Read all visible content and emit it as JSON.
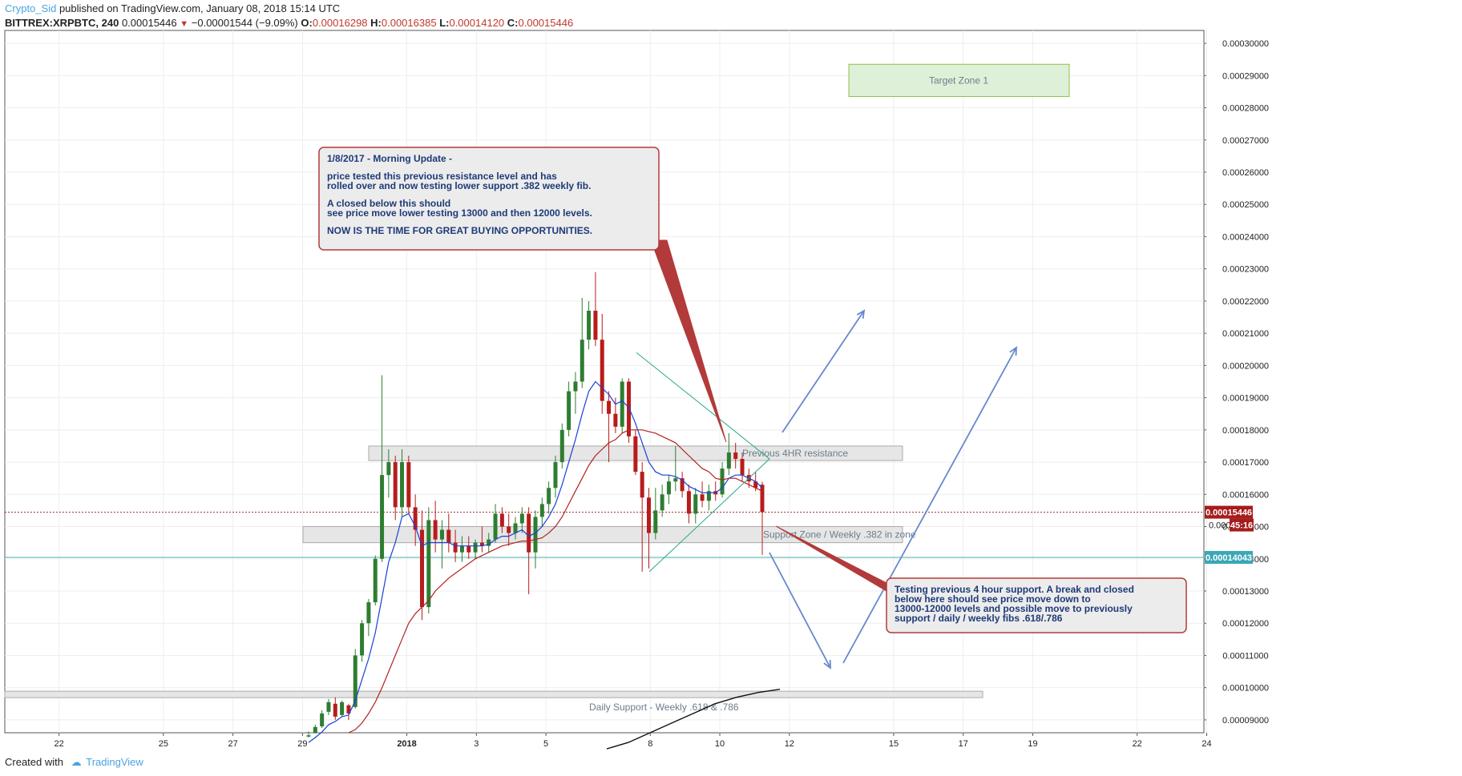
{
  "header": {
    "author": "Crypto_Sid",
    "published_text": "published on TradingView.com, January 08, 2018 15:14 UTC",
    "symbol": "BITTREX:XRPBTC, 240",
    "last": "0.00015446",
    "change": "−0.00001544 (−9.09%)",
    "open_label": "O:",
    "open": "0.00016298",
    "high_label": "H:",
    "high": "0.00016385",
    "low_label": "L:",
    "low": "0.00014120",
    "close_label": "C:",
    "close": "0.00015446"
  },
  "footer": {
    "created_with": "Created with",
    "brand": "TradingView"
  },
  "colors": {
    "up": "#2e7d32",
    "down": "#b71c1c",
    "ema_fast": "#1a3fd8",
    "ema_slow": "#b22222",
    "price_line": "#a52a2a",
    "support_line": "#4ab3b3",
    "grid": "#eeeeee",
    "annotation_border": "#b33a3a",
    "annotation_text": "#1e3a78",
    "arrow": "#6688cc",
    "target_fill": "#dff0d8",
    "target_border": "#8bc34a",
    "zone_fill": "#e6e6e6",
    "triangle": "#2aa88a"
  },
  "chart_data": {
    "type": "candlestick",
    "symbol": "BITTREX:XRPBTC",
    "interval": "240",
    "ylim": [
      8.6e-05,
      0.000304
    ],
    "y_ticks": [
      "0.00009000",
      "0.00010000",
      "0.00011000",
      "0.00012000",
      "0.00013000",
      "0.00014000",
      "0.00015000",
      "0.00016000",
      "0.00017000",
      "0.00018000",
      "0.00019000",
      "0.00020000",
      "0.00021000",
      "0.00022000",
      "0.00023000",
      "0.00024000",
      "0.00025000",
      "0.00026000",
      "0.00027000",
      "0.00028000",
      "0.00029000",
      "0.00030000"
    ],
    "x_ticks": [
      "22",
      "25",
      "27",
      "29",
      "2018",
      "3",
      "5",
      "8",
      "10",
      "12",
      "15",
      "17",
      "19",
      "22",
      "24"
    ],
    "last_price_label": "0.00015446",
    "countdown_label": "45:16",
    "hidden_label": "0.000",
    "support_price_label": "0.00014043",
    "candles": [
      {
        "o": 8.48e-05,
        "h": 8.64e-05,
        "l": 8.46e-05,
        "c": 8.52e-05
      },
      {
        "o": 8.6e-05,
        "h": 8.85e-05,
        "l": 8.58e-05,
        "c": 8.78e-05
      },
      {
        "o": 8.8e-05,
        "h": 9.3e-05,
        "l": 8.75e-05,
        "c": 9.2e-05
      },
      {
        "o": 9.25e-05,
        "h": 9.65e-05,
        "l": 9.15e-05,
        "c": 9.55e-05
      },
      {
        "o": 9.5e-05,
        "h": 9.7e-05,
        "l": 9e-05,
        "c": 9.1e-05
      },
      {
        "o": 9.15e-05,
        "h": 9.6e-05,
        "l": 9.1e-05,
        "c": 9.55e-05
      },
      {
        "o": 9.45e-05,
        "h": 9.5e-05,
        "l": 9e-05,
        "c": 9.2e-05
      },
      {
        "o": 9.4e-05,
        "h": 0.000112,
        "l": 9.35e-05,
        "c": 0.00011
      },
      {
        "o": 0.00011,
        "h": 0.000121,
        "l": 0.000108,
        "c": 0.00012
      },
      {
        "o": 0.00012,
        "h": 0.0001275,
        "l": 0.000116,
        "c": 0.0001265
      },
      {
        "o": 0.0001265,
        "h": 0.000141,
        "l": 0.0001255,
        "c": 0.00014
      },
      {
        "o": 0.00014,
        "h": 0.000197,
        "l": 0.000139,
        "c": 0.000166
      },
      {
        "o": 0.000166,
        "h": 0.000174,
        "l": 0.000159,
        "c": 0.00017
      },
      {
        "o": 0.00017,
        "h": 0.000172,
        "l": 0.000152,
        "c": 0.000156
      },
      {
        "o": 0.000156,
        "h": 0.000174,
        "l": 0.000153,
        "c": 0.00017
      },
      {
        "o": 0.00017,
        "h": 0.000172,
        "l": 0.000154,
        "c": 0.000156
      },
      {
        "o": 0.000156,
        "h": 0.00016,
        "l": 0.000144,
        "c": 0.000149
      },
      {
        "o": 0.000149,
        "h": 0.000155,
        "l": 0.000121,
        "c": 0.000125
      },
      {
        "o": 0.000125,
        "h": 0.000156,
        "l": 0.000123,
        "c": 0.000152
      },
      {
        "o": 0.000152,
        "h": 0.000158,
        "l": 0.000142,
        "c": 0.000146
      },
      {
        "o": 0.000146,
        "h": 0.000152,
        "l": 0.000137,
        "c": 0.000149
      },
      {
        "o": 0.000149,
        "h": 0.000154,
        "l": 0.000142,
        "c": 0.000145
      },
      {
        "o": 0.000145,
        "h": 0.000149,
        "l": 0.000139,
        "c": 0.000142
      },
      {
        "o": 0.000142,
        "h": 0.000147,
        "l": 0.000139,
        "c": 0.000144
      },
      {
        "o": 0.000144,
        "h": 0.000147,
        "l": 0.00014,
        "c": 0.000142
      },
      {
        "o": 0.000142,
        "h": 0.000146,
        "l": 0.00014,
        "c": 0.000145
      },
      {
        "o": 0.000145,
        "h": 0.00015,
        "l": 0.000142,
        "c": 0.000144
      },
      {
        "o": 0.000144,
        "h": 0.000148,
        "l": 0.000142,
        "c": 0.000146
      },
      {
        "o": 0.000146,
        "h": 0.000157,
        "l": 0.000145,
        "c": 0.000154
      },
      {
        "o": 0.000154,
        "h": 0.000156,
        "l": 0.000148,
        "c": 0.00015
      },
      {
        "o": 0.00015,
        "h": 0.000154,
        "l": 0.000144,
        "c": 0.000148
      },
      {
        "o": 0.000148,
        "h": 0.000153,
        "l": 0.000146,
        "c": 0.000151
      },
      {
        "o": 0.000151,
        "h": 0.000156,
        "l": 0.000148,
        "c": 0.000154
      },
      {
        "o": 0.000154,
        "h": 0.000156,
        "l": 0.000129,
        "c": 0.000142
      },
      {
        "o": 0.000142,
        "h": 0.000155,
        "l": 0.000137,
        "c": 0.000153
      },
      {
        "o": 0.000153,
        "h": 0.000159,
        "l": 0.00015,
        "c": 0.000157
      },
      {
        "o": 0.000157,
        "h": 0.000164,
        "l": 0.000154,
        "c": 0.000162
      },
      {
        "o": 0.000162,
        "h": 0.000172,
        "l": 0.000159,
        "c": 0.00017
      },
      {
        "o": 0.00017,
        "h": 0.000182,
        "l": 0.000168,
        "c": 0.00018
      },
      {
        "o": 0.00018,
        "h": 0.000195,
        "l": 0.000178,
        "c": 0.000192
      },
      {
        "o": 0.000192,
        "h": 0.000198,
        "l": 0.000185,
        "c": 0.000195
      },
      {
        "o": 0.000195,
        "h": 0.000221,
        "l": 0.000193,
        "c": 0.000208
      },
      {
        "o": 0.000208,
        "h": 0.00022,
        "l": 0.000205,
        "c": 0.000217
      },
      {
        "o": 0.000217,
        "h": 0.000229,
        "l": 0.000206,
        "c": 0.000208
      },
      {
        "o": 0.000208,
        "h": 0.000216,
        "l": 0.000185,
        "c": 0.000189
      },
      {
        "o": 0.000189,
        "h": 0.000192,
        "l": 0.00017,
        "c": 0.000185
      },
      {
        "o": 0.000185,
        "h": 0.00019,
        "l": 0.000179,
        "c": 0.000181
      },
      {
        "o": 0.000181,
        "h": 0.000196,
        "l": 0.000179,
        "c": 0.000195
      },
      {
        "o": 0.000195,
        "h": 0.000196,
        "l": 0.000176,
        "c": 0.000178
      },
      {
        "o": 0.000178,
        "h": 0.00018,
        "l": 0.000166,
        "c": 0.000167
      },
      {
        "o": 0.000167,
        "h": 0.00017,
        "l": 0.000136,
        "c": 0.000159
      },
      {
        "o": 0.000159,
        "h": 0.000162,
        "l": 0.000137,
        "c": 0.000148
      },
      {
        "o": 0.000148,
        "h": 0.000162,
        "l": 0.000146,
        "c": 0.000155
      },
      {
        "o": 0.000155,
        "h": 0.000163,
        "l": 0.000153,
        "c": 0.00016
      },
      {
        "o": 0.00016,
        "h": 0.000166,
        "l": 0.000157,
        "c": 0.000164
      },
      {
        "o": 0.000164,
        "h": 0.000175,
        "l": 0.000161,
        "c": 0.000165
      },
      {
        "o": 0.000165,
        "h": 0.000167,
        "l": 0.000159,
        "c": 0.000161
      },
      {
        "o": 0.000161,
        "h": 0.000163,
        "l": 0.000151,
        "c": 0.000154
      },
      {
        "o": 0.000154,
        "h": 0.000162,
        "l": 0.000151,
        "c": 0.00016
      },
      {
        "o": 0.00016,
        "h": 0.000164,
        "l": 0.000156,
        "c": 0.000158
      },
      {
        "o": 0.000158,
        "h": 0.000163,
        "l": 0.000155,
        "c": 0.000161
      },
      {
        "o": 0.000161,
        "h": 0.000164,
        "l": 0.000158,
        "c": 0.00016
      },
      {
        "o": 0.00016,
        "h": 0.00017,
        "l": 0.000159,
        "c": 0.000168
      },
      {
        "o": 0.000168,
        "h": 0.000179,
        "l": 0.000166,
        "c": 0.000173
      },
      {
        "o": 0.000173,
        "h": 0.000176,
        "l": 0.000168,
        "c": 0.000171
      },
      {
        "o": 0.000171,
        "h": 0.000173,
        "l": 0.000164,
        "c": 0.000166
      },
      {
        "o": 0.000166,
        "h": 0.000168,
        "l": 0.000162,
        "c": 0.000164
      },
      {
        "o": 0.000164,
        "h": 0.000167,
        "l": 0.000161,
        "c": 0.000162
      },
      {
        "o": 0.000163,
        "h": 0.0001639,
        "l": 0.0001412,
        "c": 0.0001545
      }
    ],
    "ema_fast": [
      8.3e-05,
      8.45e-05,
      8.62e-05,
      8.85e-05,
      8.95e-05,
      9.1e-05,
      9.15e-05,
      9.6e-05,
      0.0001025,
      0.000109,
      0.000117,
      0.000128,
      0.000139,
      0.000145,
      0.000153,
      0.000154,
      0.00015,
      0.000144,
      0.000145,
      0.000145,
      0.000145,
      0.000145,
      0.000144,
      0.000144,
      0.000144,
      0.000144,
      0.000144,
      0.0001445,
      0.000146,
      0.000147,
      0.000147,
      0.000148,
      0.000149,
      0.000147,
      0.000148,
      0.00015,
      0.000153,
      0.000157,
      0.000163,
      0.00017,
      0.000177,
      0.000185,
      0.000192,
      0.000195,
      0.000193,
      0.000191,
      0.000188,
      0.000189,
      0.000187,
      0.000182,
      0.000176,
      0.00017,
      0.000167,
      0.000166,
      0.000166,
      0.0001655,
      0.0001645,
      0.0001625,
      0.0001615,
      0.0001605,
      0.0001605,
      0.0001605,
      0.000162,
      0.000165,
      0.000166,
      0.000166,
      0.000165,
      0.000164,
      0.000162
    ],
    "ema_slow": [
      null,
      null,
      null,
      null,
      null,
      null,
      8.6e-05,
      8.7e-05,
      8.9e-05,
      9.2e-05,
      9.55e-05,
      0.0001,
      0.000105,
      0.00011,
      0.000115,
      0.00012,
      0.000123,
      0.000125,
      0.000127,
      0.00013,
      0.000132,
      0.000134,
      0.0001355,
      0.000137,
      0.0001385,
      0.00014,
      0.000141,
      0.000142,
      0.000143,
      0.000144,
      0.0001445,
      0.000145,
      0.0001455,
      0.0001455,
      0.000146,
      0.0001465,
      0.000148,
      0.00015,
      0.000153,
      0.000157,
      0.000161,
      0.000165,
      0.000169,
      0.000172,
      0.000174,
      0.000176,
      0.000177,
      0.000179,
      0.00018,
      0.00018,
      0.00018,
      0.0001795,
      0.000179,
      0.000178,
      0.000177,
      0.000176,
      0.000174,
      0.000172,
      0.00017,
      0.000168,
      0.000167,
      0.000165,
      0.0001645,
      0.000165,
      0.000165,
      0.000164,
      0.000163,
      0.000162,
      0.000161
    ],
    "ema_long": [
      8.1e-05,
      8.3e-05,
      8.6e-05,
      8.9e-05,
      9.2e-05,
      9.5e-05,
      9.7e-05,
      9.85e-05,
      9.95e-05
    ],
    "annotations": {
      "target_zone": "Target Zone 1",
      "resistance_zone": "Previous 4HR resistance",
      "support_zone": "Support Zone /  Weekly .382 in zone",
      "daily_support": "Daily Support - Weekly .618 & .786",
      "morning_update": [
        "1/8/2017 - Morning Update -",
        "price tested this previous resistance level and has",
        " rolled over and now testing lower support .382 weekly fib.",
        "A closed below this should",
        " see price move lower testing 13000 and then 12000 levels.",
        "NOW IS THE TIME FOR GREAT BUYING OPPORTUNITIES."
      ],
      "support_note": [
        "Testing previous 4 hour support.  A break and closed",
        "below here should see price move down to",
        "13000-12000 levels and possible move to previously",
        "support / daily / weekly fibs .618/.786"
      ]
    }
  }
}
